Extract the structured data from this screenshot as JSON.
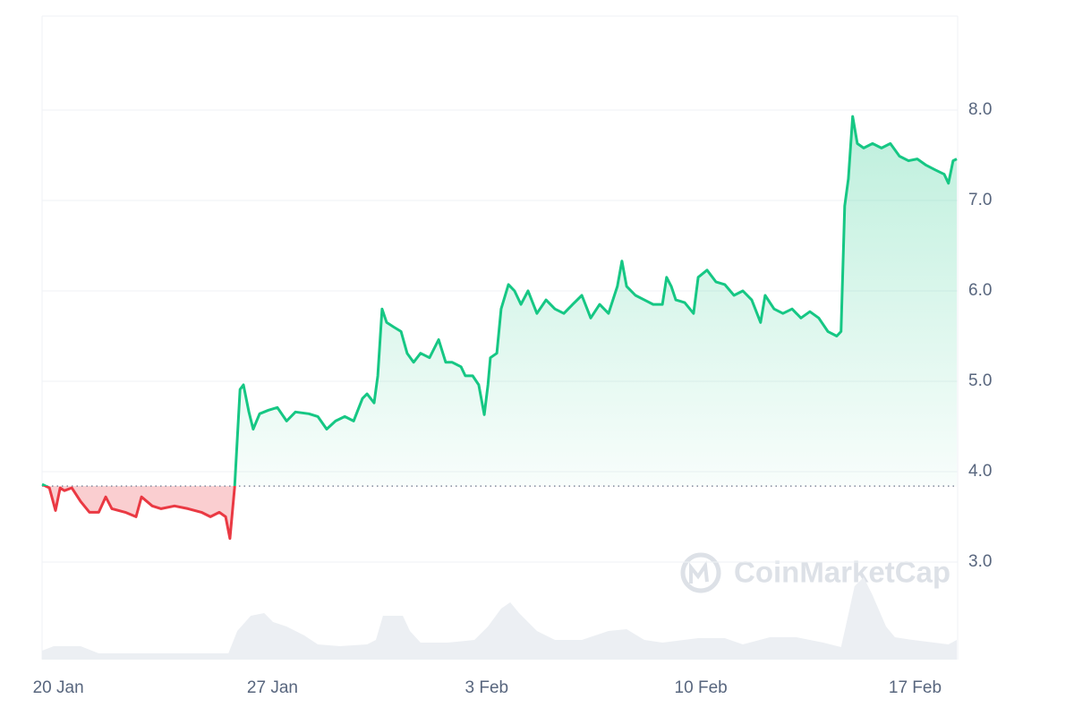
{
  "chart_data": {
    "type": "line",
    "watermark": "CoinMarketCap",
    "x": [
      -0.53,
      -0.29,
      -0.09,
      0.06,
      0.2,
      0.44,
      0.73,
      1.02,
      1.32,
      1.55,
      1.75,
      2.19,
      2.54,
      2.72,
      3.07,
      3.36,
      3.8,
      4.24,
      4.68,
      4.97,
      5.26,
      5.47,
      5.61,
      5.76,
      5.94,
      6.05,
      6.23,
      6.37,
      6.58,
      6.87,
      7.16,
      7.46,
      7.75,
      8.19,
      8.48,
      8.77,
      9.06,
      9.36,
      9.65,
      9.94,
      10.09,
      10.32,
      10.44,
      10.58,
      10.73,
      10.96,
      11.2,
      11.4,
      11.61,
      11.84,
      12.13,
      12.43,
      12.66,
      12.87,
      13.16,
      13.3,
      13.54,
      13.74,
      13.92,
      14.04,
      14.12,
      14.33,
      14.47,
      14.71,
      14.91,
      15.12,
      15.35,
      15.64,
      15.94,
      16.23,
      16.52,
      16.81,
      17.11,
      17.4,
      17.69,
      17.98,
      18.27,
      18.42,
      18.57,
      18.86,
      19.15,
      19.44,
      19.74,
      19.88,
      20.03,
      20.18,
      20.47,
      20.76,
      20.91,
      21.2,
      21.49,
      21.78,
      22.08,
      22.37,
      22.66,
      22.95,
      23.1,
      23.39,
      23.68,
      23.98,
      24.27,
      24.56,
      24.85,
      25.15,
      25.44,
      25.58,
      25.7,
      25.82,
      25.96,
      26.11,
      26.32,
      26.61,
      26.9,
      27.19,
      27.49,
      27.78,
      28.07,
      28.36,
      28.65,
      28.95,
      29.09,
      29.24,
      29.36
    ],
    "series": [
      {
        "color_up": "#16c784",
        "color_down": "#ea3943",
        "values": [
          3.86,
          3.82,
          3.57,
          3.82,
          3.79,
          3.82,
          3.67,
          3.55,
          3.55,
          3.72,
          3.59,
          3.55,
          3.5,
          3.72,
          3.62,
          3.59,
          3.62,
          3.59,
          3.55,
          3.5,
          3.55,
          3.5,
          3.26,
          3.82,
          4.91,
          4.96,
          4.66,
          4.47,
          4.64,
          4.68,
          4.71,
          4.56,
          4.66,
          4.64,
          4.61,
          4.47,
          4.56,
          4.61,
          4.56,
          4.81,
          4.86,
          4.76,
          5.06,
          5.8,
          5.65,
          5.6,
          5.55,
          5.31,
          5.21,
          5.31,
          5.26,
          5.46,
          5.21,
          5.21,
          5.16,
          5.06,
          5.06,
          4.96,
          4.63,
          4.96,
          5.26,
          5.31,
          5.8,
          6.07,
          6.0,
          5.85,
          6.0,
          5.75,
          5.9,
          5.8,
          5.75,
          5.85,
          5.95,
          5.7,
          5.85,
          5.75,
          6.05,
          6.33,
          6.05,
          5.95,
          5.9,
          5.85,
          5.85,
          6.15,
          6.05,
          5.9,
          5.87,
          5.75,
          6.15,
          6.23,
          6.1,
          6.07,
          5.95,
          6.0,
          5.9,
          5.65,
          5.95,
          5.8,
          5.75,
          5.8,
          5.7,
          5.77,
          5.7,
          5.55,
          5.5,
          5.55,
          6.94,
          7.24,
          7.93,
          7.63,
          7.58,
          7.63,
          7.58,
          7.63,
          7.49,
          7.44,
          7.46,
          7.39,
          7.34,
          7.29,
          7.19,
          7.44,
          7.46
        ]
      }
    ],
    "baseline": 3.84,
    "volume": {
      "color": "#eceff3",
      "vlim": [
        0,
        100
      ],
      "x": [
        -0.53,
        -0.15,
        0.73,
        1.32,
        2.49,
        3.95,
        5.56,
        5.85,
        6.29,
        6.73,
        7.02,
        7.46,
        8.04,
        8.48,
        9.21,
        10.09,
        10.38,
        10.61,
        11.26,
        11.49,
        11.84,
        12.72,
        13.6,
        14.04,
        14.47,
        14.77,
        15.06,
        15.64,
        16.23,
        17.11,
        17.98,
        18.57,
        19.15,
        19.74,
        20.91,
        21.78,
        22.37,
        23.25,
        24.12,
        25.0,
        25.58,
        25.73,
        26.02,
        26.32,
        26.61,
        27.05,
        27.34,
        27.92,
        29.09,
        29.36
      ],
      "values": [
        10,
        15,
        15,
        7,
        7,
        7,
        7,
        32,
        49,
        52,
        42,
        37,
        27,
        17,
        15,
        17,
        22,
        49,
        49,
        32,
        19,
        19,
        22,
        37,
        57,
        64,
        52,
        32,
        22,
        22,
        32,
        34,
        22,
        19,
        24,
        24,
        17,
        25,
        25,
        19,
        14,
        37,
        82,
        92,
        72,
        37,
        25,
        22,
        17,
        22
      ]
    },
    "xlim": [
      -0.53,
      29.39
    ],
    "xticks": [
      {
        "value": 0,
        "label": "20 Jan"
      },
      {
        "value": 7,
        "label": "27 Jan"
      },
      {
        "value": 14,
        "label": "3 Feb"
      },
      {
        "value": 21,
        "label": "10 Feb"
      },
      {
        "value": 28,
        "label": "17 Feb"
      }
    ],
    "ylim": [
      1.92,
      9.04
    ],
    "yticks": [
      {
        "value": 3,
        "label": "3.0"
      },
      {
        "value": 4,
        "label": "4.0"
      },
      {
        "value": 5,
        "label": "5.0"
      },
      {
        "value": 6,
        "label": "6.0"
      },
      {
        "value": 7,
        "label": "7.0"
      },
      {
        "value": 8,
        "label": "8.0"
      }
    ],
    "grid": true
  }
}
